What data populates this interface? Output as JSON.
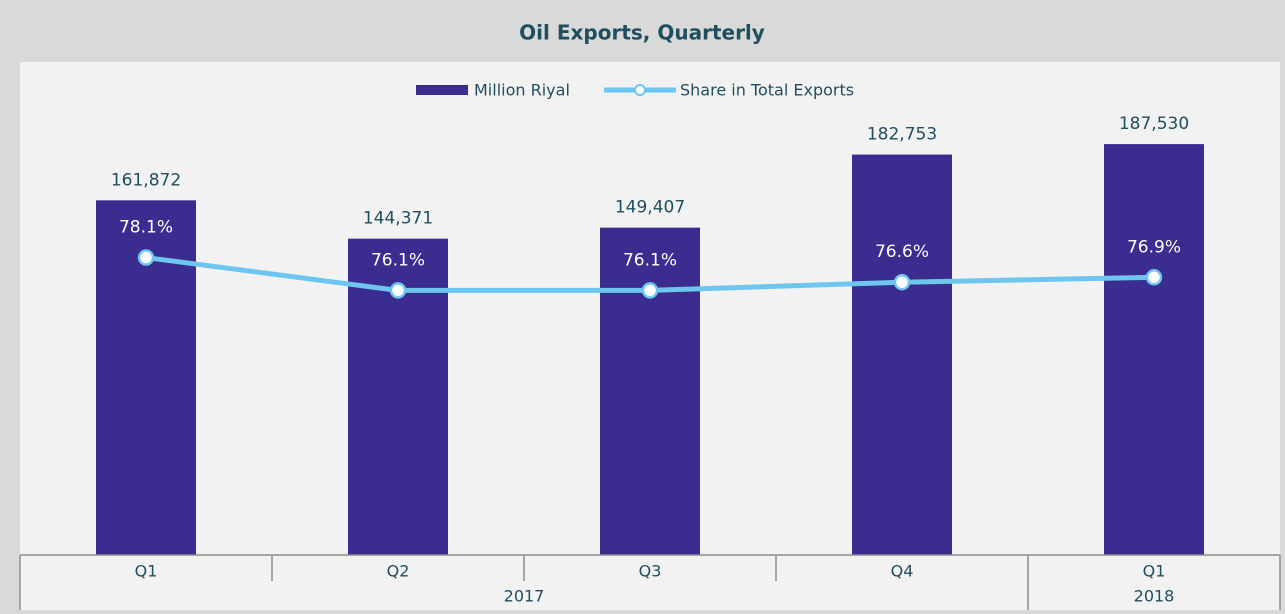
{
  "chart_data": {
    "type": "bar_line",
    "title": "Oil Exports, Quarterly",
    "categories": [
      "Q1",
      "Q2",
      "Q3",
      "Q4",
      "Q1"
    ],
    "years": [
      "2017",
      "2017",
      "2017",
      "2017",
      "2018"
    ],
    "series": [
      {
        "name": "Million Riyal",
        "color": "#3a2d8f",
        "type": "bar",
        "values": [
          161872,
          144371,
          149407,
          182753,
          187530
        ],
        "value_labels": [
          "161,872",
          "144,371",
          "149,407",
          "182,753",
          "187,530"
        ]
      },
      {
        "name": "Share in Total Exports",
        "color": "#6ec6ee",
        "type": "line",
        "axis": "y2",
        "values": [
          78.1,
          76.1,
          76.1,
          76.6,
          76.9
        ],
        "value_labels": [
          "78.1%",
          "76.1%",
          "76.1%",
          "76.6%",
          "76.9%"
        ]
      }
    ],
    "ylim": [
      0,
      225000
    ],
    "y2lim": [
      60,
      90
    ]
  }
}
